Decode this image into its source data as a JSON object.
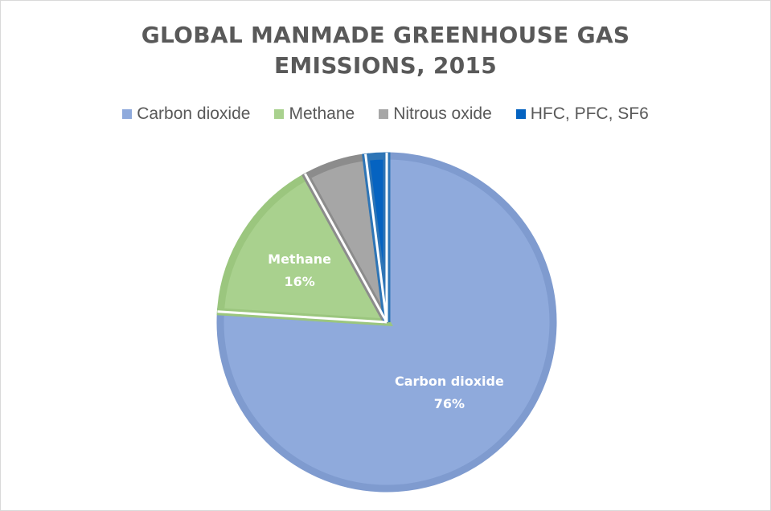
{
  "chart_data": {
    "type": "pie",
    "title_lines": [
      "GLOBAL MANMADE GREENHOUSE GAS",
      "EMISSIONS, 2015"
    ],
    "legend_position": "top",
    "categories": [
      "Carbon dioxide",
      "Methane",
      "Nitrous oxide",
      "HFC, PFC, SF6"
    ],
    "values": [
      76,
      16,
      6,
      2
    ],
    "colors": [
      "#8faadc",
      "#a9d18e",
      "#a6a6a6",
      "#0563c1"
    ],
    "border_colors": [
      "#7f9bcf",
      "#9bc67e",
      "#8c8c8c",
      "#2e75b6"
    ],
    "data_labels": [
      {
        "category": "Carbon dioxide",
        "name": "Carbon dioxide",
        "percent": "76%"
      },
      {
        "category": "Methane",
        "name": "Methane",
        "percent": "16%"
      }
    ]
  }
}
